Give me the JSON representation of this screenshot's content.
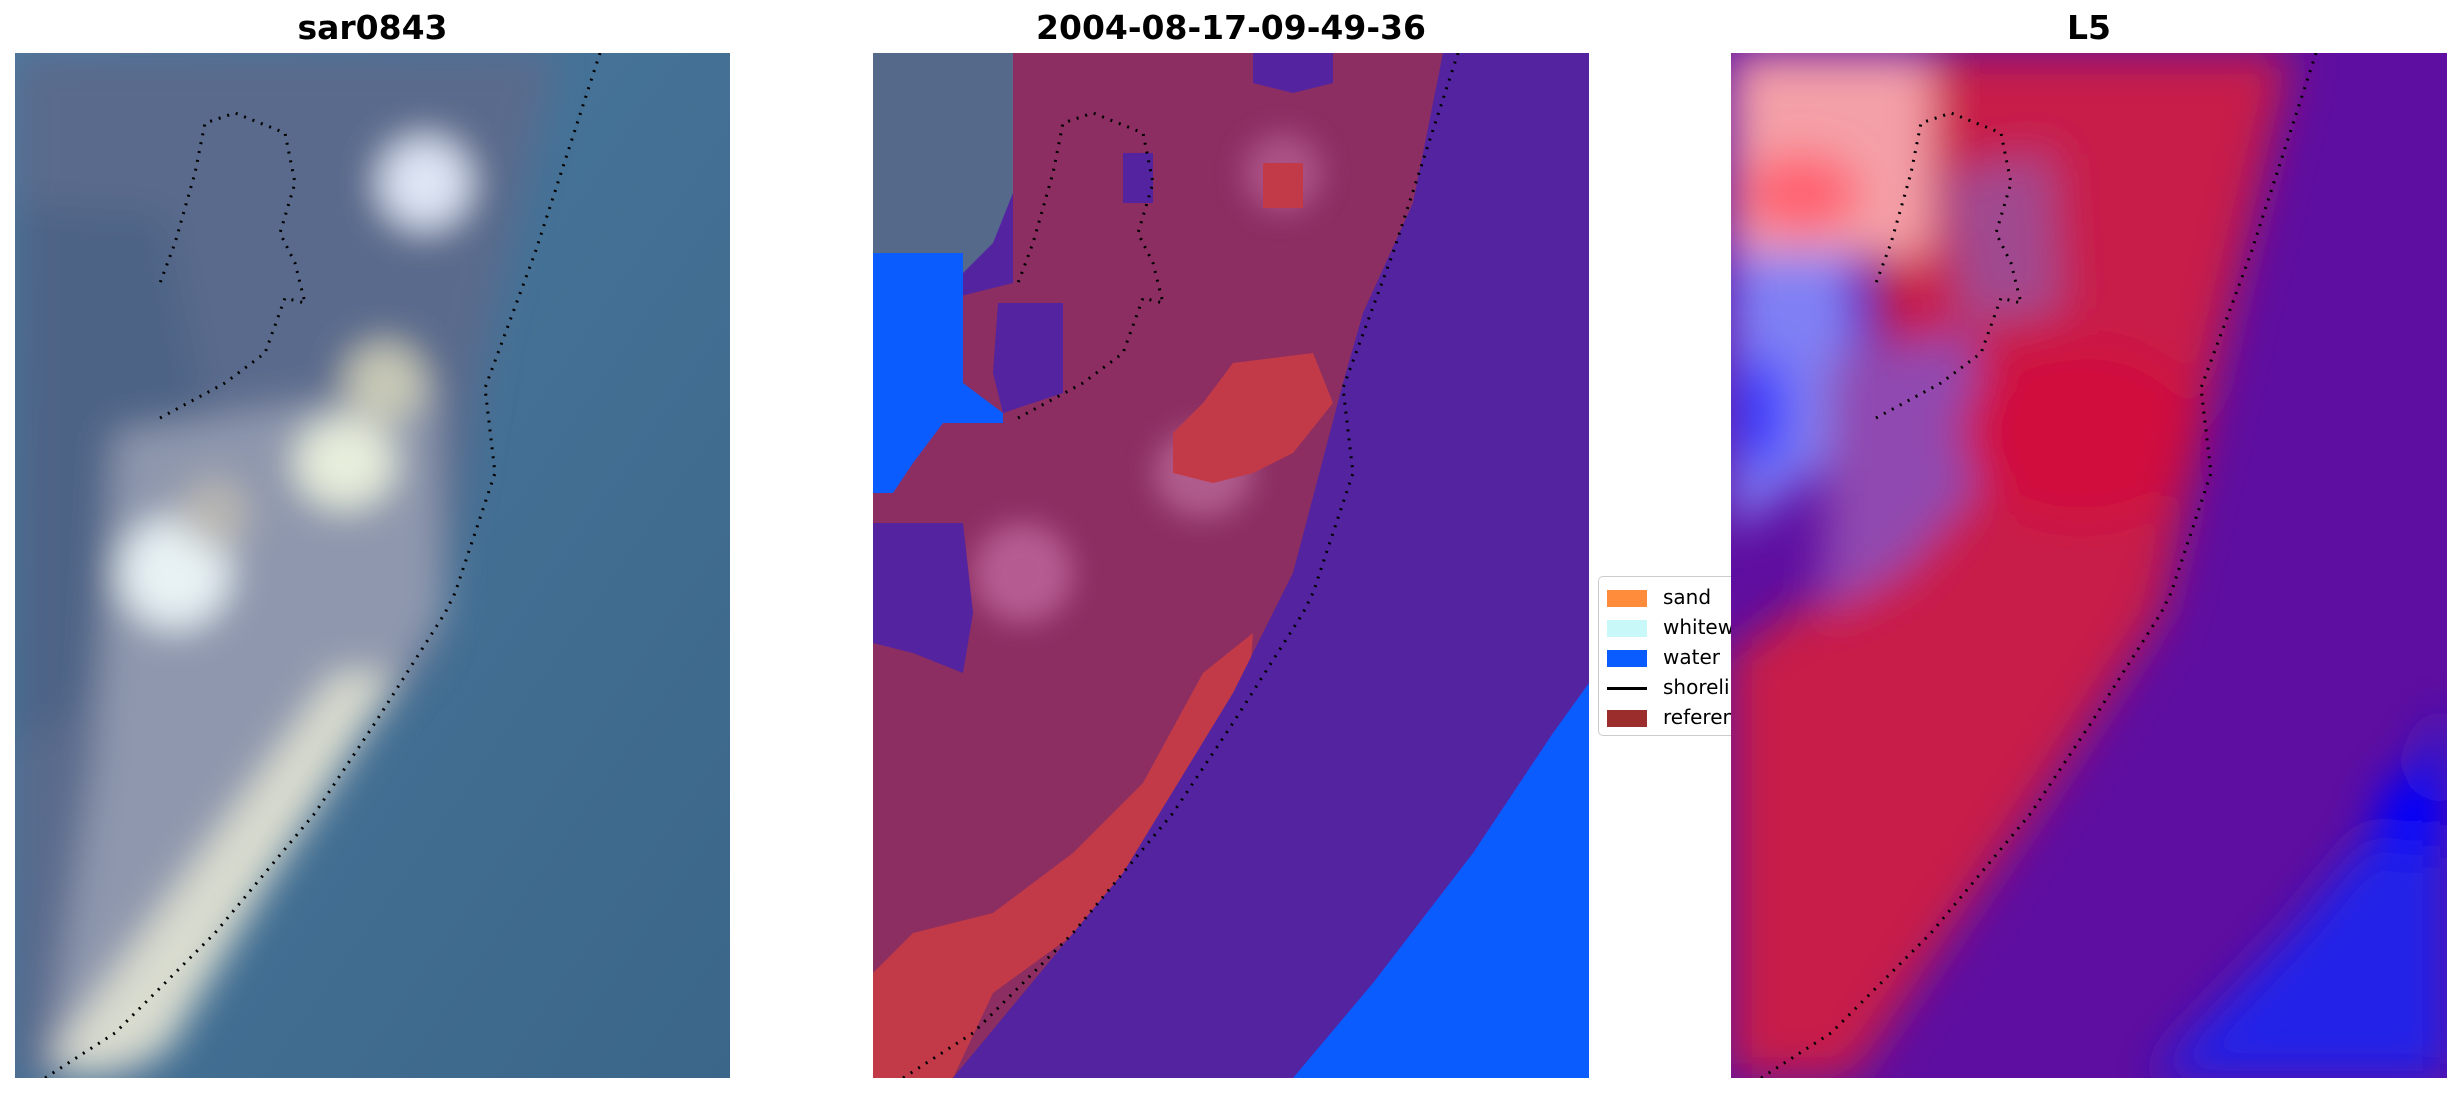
{
  "panels": [
    {
      "title": "sar0843"
    },
    {
      "title": "2004-08-17-09-49-36"
    },
    {
      "title": "L5"
    }
  ],
  "legend": {
    "items": [
      {
        "label": "sand",
        "color": "#ff8c3a",
        "kind": "patch"
      },
      {
        "label": "whitewater",
        "color": "#c8f8f8",
        "kind": "patch"
      },
      {
        "label": "water",
        "color": "#0a5cff",
        "kind": "patch"
      },
      {
        "label": "shoreline",
        "color": "#000000",
        "kind": "line"
      },
      {
        "label": "reference",
        "color": "#9b2d2d",
        "kind": "patch"
      }
    ]
  },
  "colors": {
    "rgb_water": "#3f6e93",
    "rgb_land": "#5b6b8a",
    "class_water_overlay": "#5222a0",
    "class_land_overlay": "#8b2c60",
    "class_sand_red": "#c23a48",
    "class_water_blue": "#0a5cff",
    "index_red": "#c81840",
    "index_purple": "#5e0ea0",
    "index_blue": "#1020f0"
  }
}
